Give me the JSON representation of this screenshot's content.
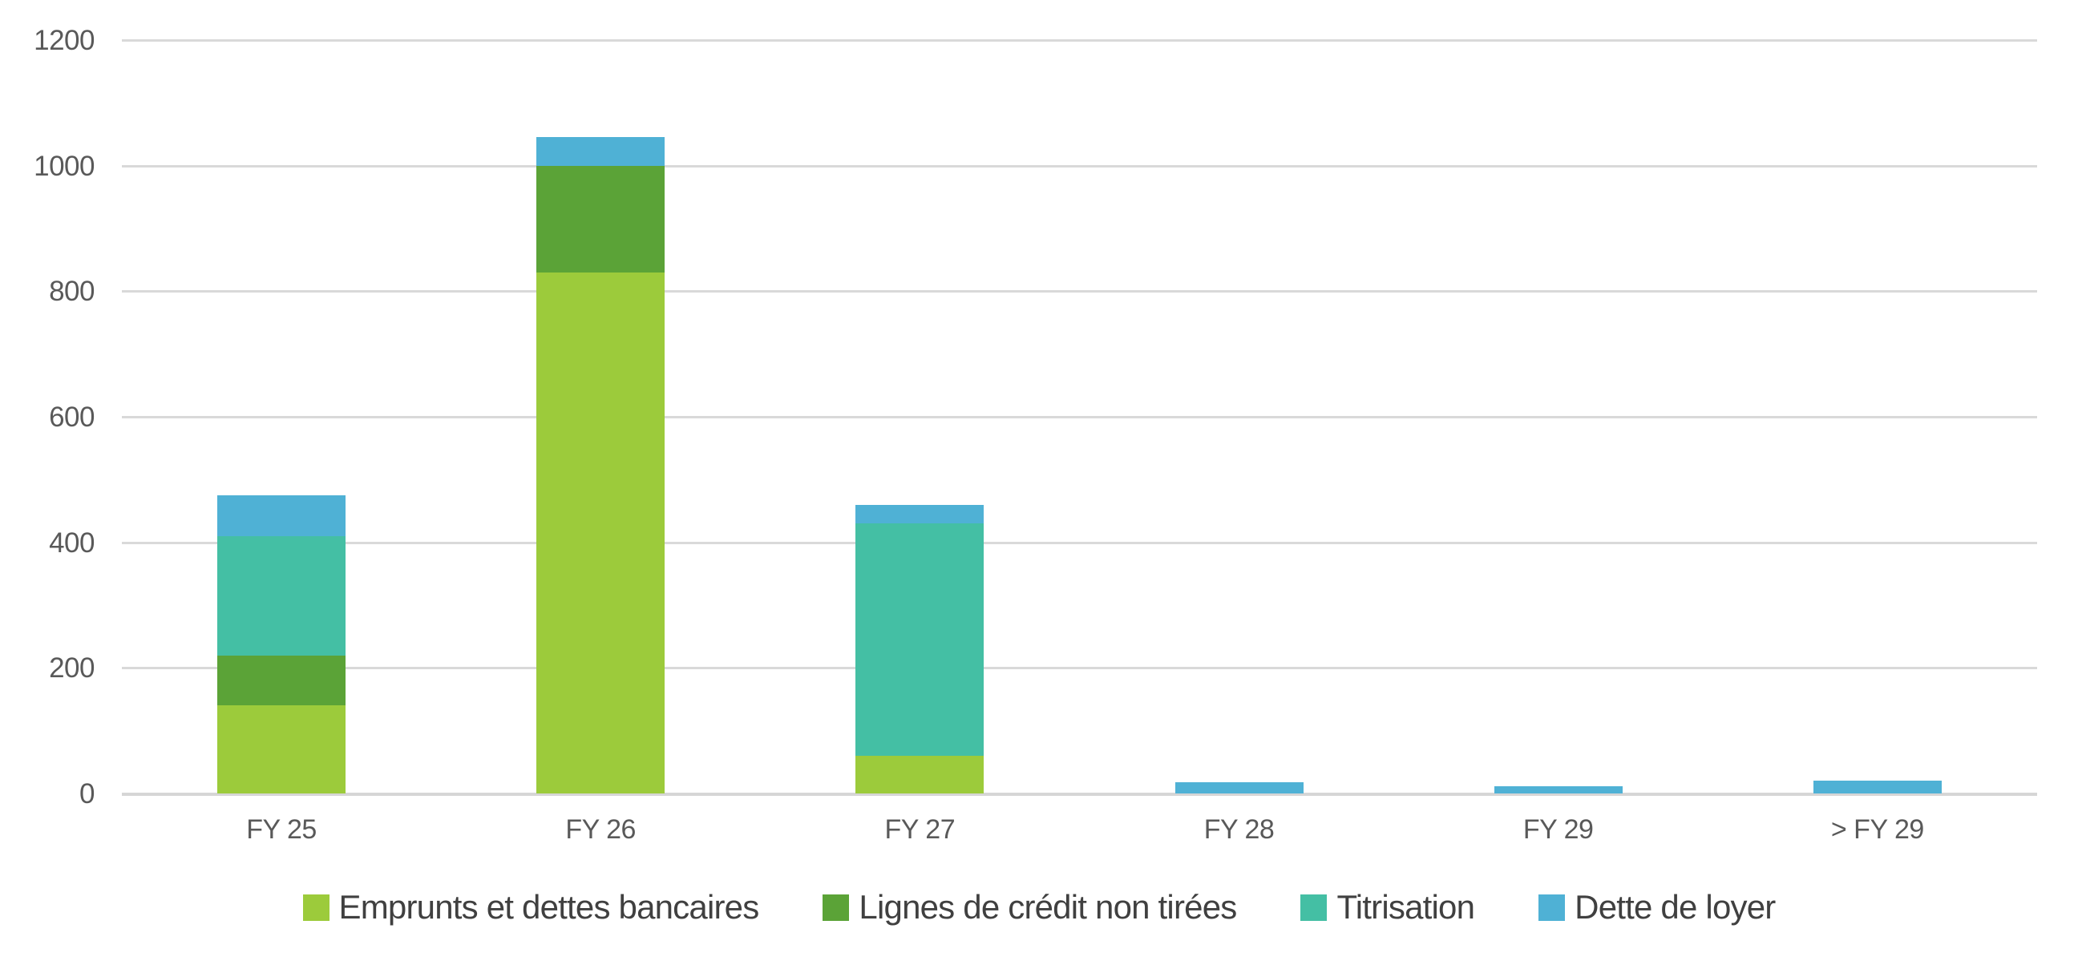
{
  "chart_data": {
    "type": "bar",
    "stacked": true,
    "title": "",
    "xlabel": "",
    "ylabel": "",
    "categories": [
      "FY 25",
      "FY 26",
      "FY 27",
      "FY 28",
      "FY 29",
      "> FY 29"
    ],
    "series": [
      {
        "name": "Emprunts et dettes bancaires",
        "color": "#9CCB3B",
        "values": [
          140,
          830,
          60,
          0,
          0,
          0
        ]
      },
      {
        "name": "Lignes de crédit non tirées",
        "color": "#5BA337",
        "values": [
          80,
          170,
          0,
          0,
          0,
          0
        ]
      },
      {
        "name": "Titrisation",
        "color": "#44BFA4",
        "values": [
          190,
          0,
          370,
          0,
          0,
          0
        ]
      },
      {
        "name": "Dette de loyer",
        "color": "#4FB1D5",
        "values": [
          65,
          45,
          30,
          18,
          11,
          20
        ]
      }
    ],
    "totals": [
      475,
      1045,
      460,
      18,
      11,
      20
    ],
    "ylim": [
      0,
      1200
    ],
    "yticks": [
      0,
      200,
      400,
      600,
      800,
      1000,
      1200
    ],
    "grid": true,
    "legend_position": "bottom",
    "colors": {
      "gridline": "#D9D9D9",
      "axis_line": "#D6D6D6",
      "tick_label_text": "#595959",
      "legend_text": "#404040",
      "background": "#FFFFFF"
    }
  }
}
